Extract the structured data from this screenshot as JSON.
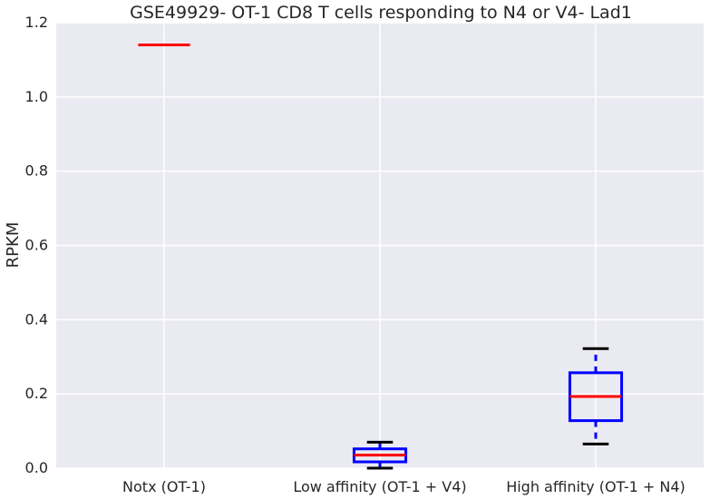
{
  "chart_data": {
    "type": "box",
    "title": "GSE49929- OT-1 CD8 T cells responding to N4 or V4- Lad1",
    "xlabel": "",
    "ylabel": "RPKM",
    "ylim": [
      0,
      1.2
    ],
    "yticks": [
      "0.0",
      "0.2",
      "0.4",
      "0.6",
      "0.8",
      "1.0",
      "1.2"
    ],
    "grid": true,
    "categories": [
      "Notx (OT-1)",
      "Low affinity (OT-1 + V4)",
      "High affinity (OT-1 + N4)"
    ],
    "boxes": [
      {
        "category": "Notx (OT-1)",
        "whisker_low": 1.14,
        "q1": 1.14,
        "median": 1.14,
        "q3": 1.14,
        "whisker_high": 1.14
      },
      {
        "category": "Low affinity (OT-1 + V4)",
        "whisker_low": 0.0,
        "q1": 0.017,
        "median": 0.035,
        "q3": 0.052,
        "whisker_high": 0.07
      },
      {
        "category": "High affinity (OT-1 + N4)",
        "whisker_low": 0.065,
        "q1": 0.128,
        "median": 0.193,
        "q3": 0.257,
        "whisker_high": 0.322
      }
    ],
    "colors": {
      "background": "#eaeaf2",
      "grid": "#ffffff",
      "box": "#0000ff",
      "median": "#ff0000",
      "whisker": "#0000ff",
      "cap": "#000000"
    }
  }
}
